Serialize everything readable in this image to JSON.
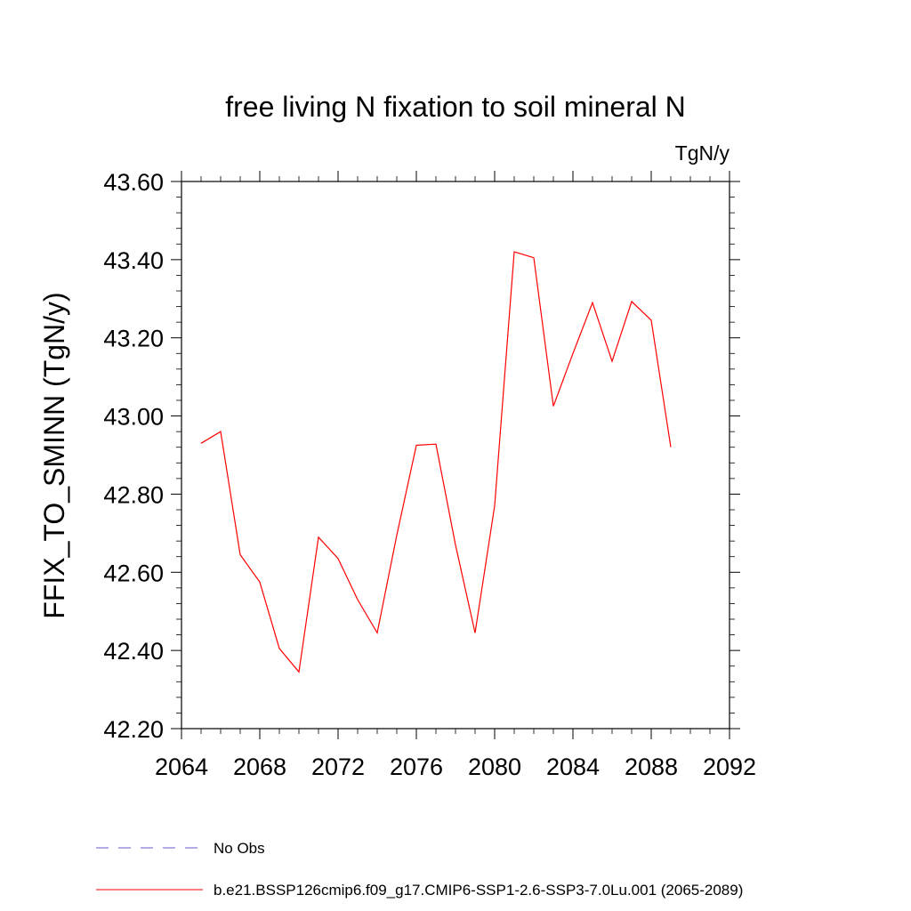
{
  "chart_data": {
    "type": "line",
    "title": "free living N fixation to soil mineral N",
    "units": "TgN/y",
    "ylabel": "FFIX_TO_SMINN  (TgN/y)",
    "xlabel": "",
    "xlim": [
      2064,
      2092
    ],
    "ylim": [
      42.2,
      43.6
    ],
    "x_ticks": [
      "2064",
      "2068",
      "2072",
      "2076",
      "2080",
      "2084",
      "2088",
      "2092"
    ],
    "y_ticks": [
      "42.20",
      "42.40",
      "42.60",
      "42.80",
      "43.00",
      "43.20",
      "43.40",
      "43.60"
    ],
    "grid": false,
    "legend_position": "bottom-left",
    "series": [
      {
        "name": "b.e21.BSSP126cmip6.f09_g17.CMIP6-SSP1-2.6-SSP3-7.0Lu.001 (2065-2089)",
        "color": "#ff0000",
        "style": "solid",
        "x": [
          2065,
          2066,
          2067,
          2068,
          2069,
          2070,
          2071,
          2072,
          2073,
          2074,
          2075,
          2076,
          2077,
          2078,
          2079,
          2080,
          2081,
          2082,
          2083,
          2084,
          2085,
          2086,
          2087,
          2088,
          2089
        ],
        "y": [
          42.93,
          42.96,
          42.645,
          42.575,
          42.405,
          42.345,
          42.69,
          42.635,
          42.53,
          42.445,
          42.695,
          42.925,
          42.928,
          42.67,
          42.445,
          42.77,
          43.42,
          43.405,
          43.025,
          43.16,
          43.29,
          43.14,
          43.293,
          43.245,
          42.92
        ]
      }
    ],
    "legend": [
      {
        "label": "No Obs",
        "color": "#6a5acd",
        "style": "dashed"
      },
      {
        "label": "b.e21.BSSP126cmip6.f09_g17.CMIP6-SSP1-2.6-SSP3-7.0Lu.001 (2065-2089)",
        "color": "#ff0000",
        "style": "solid"
      }
    ]
  }
}
